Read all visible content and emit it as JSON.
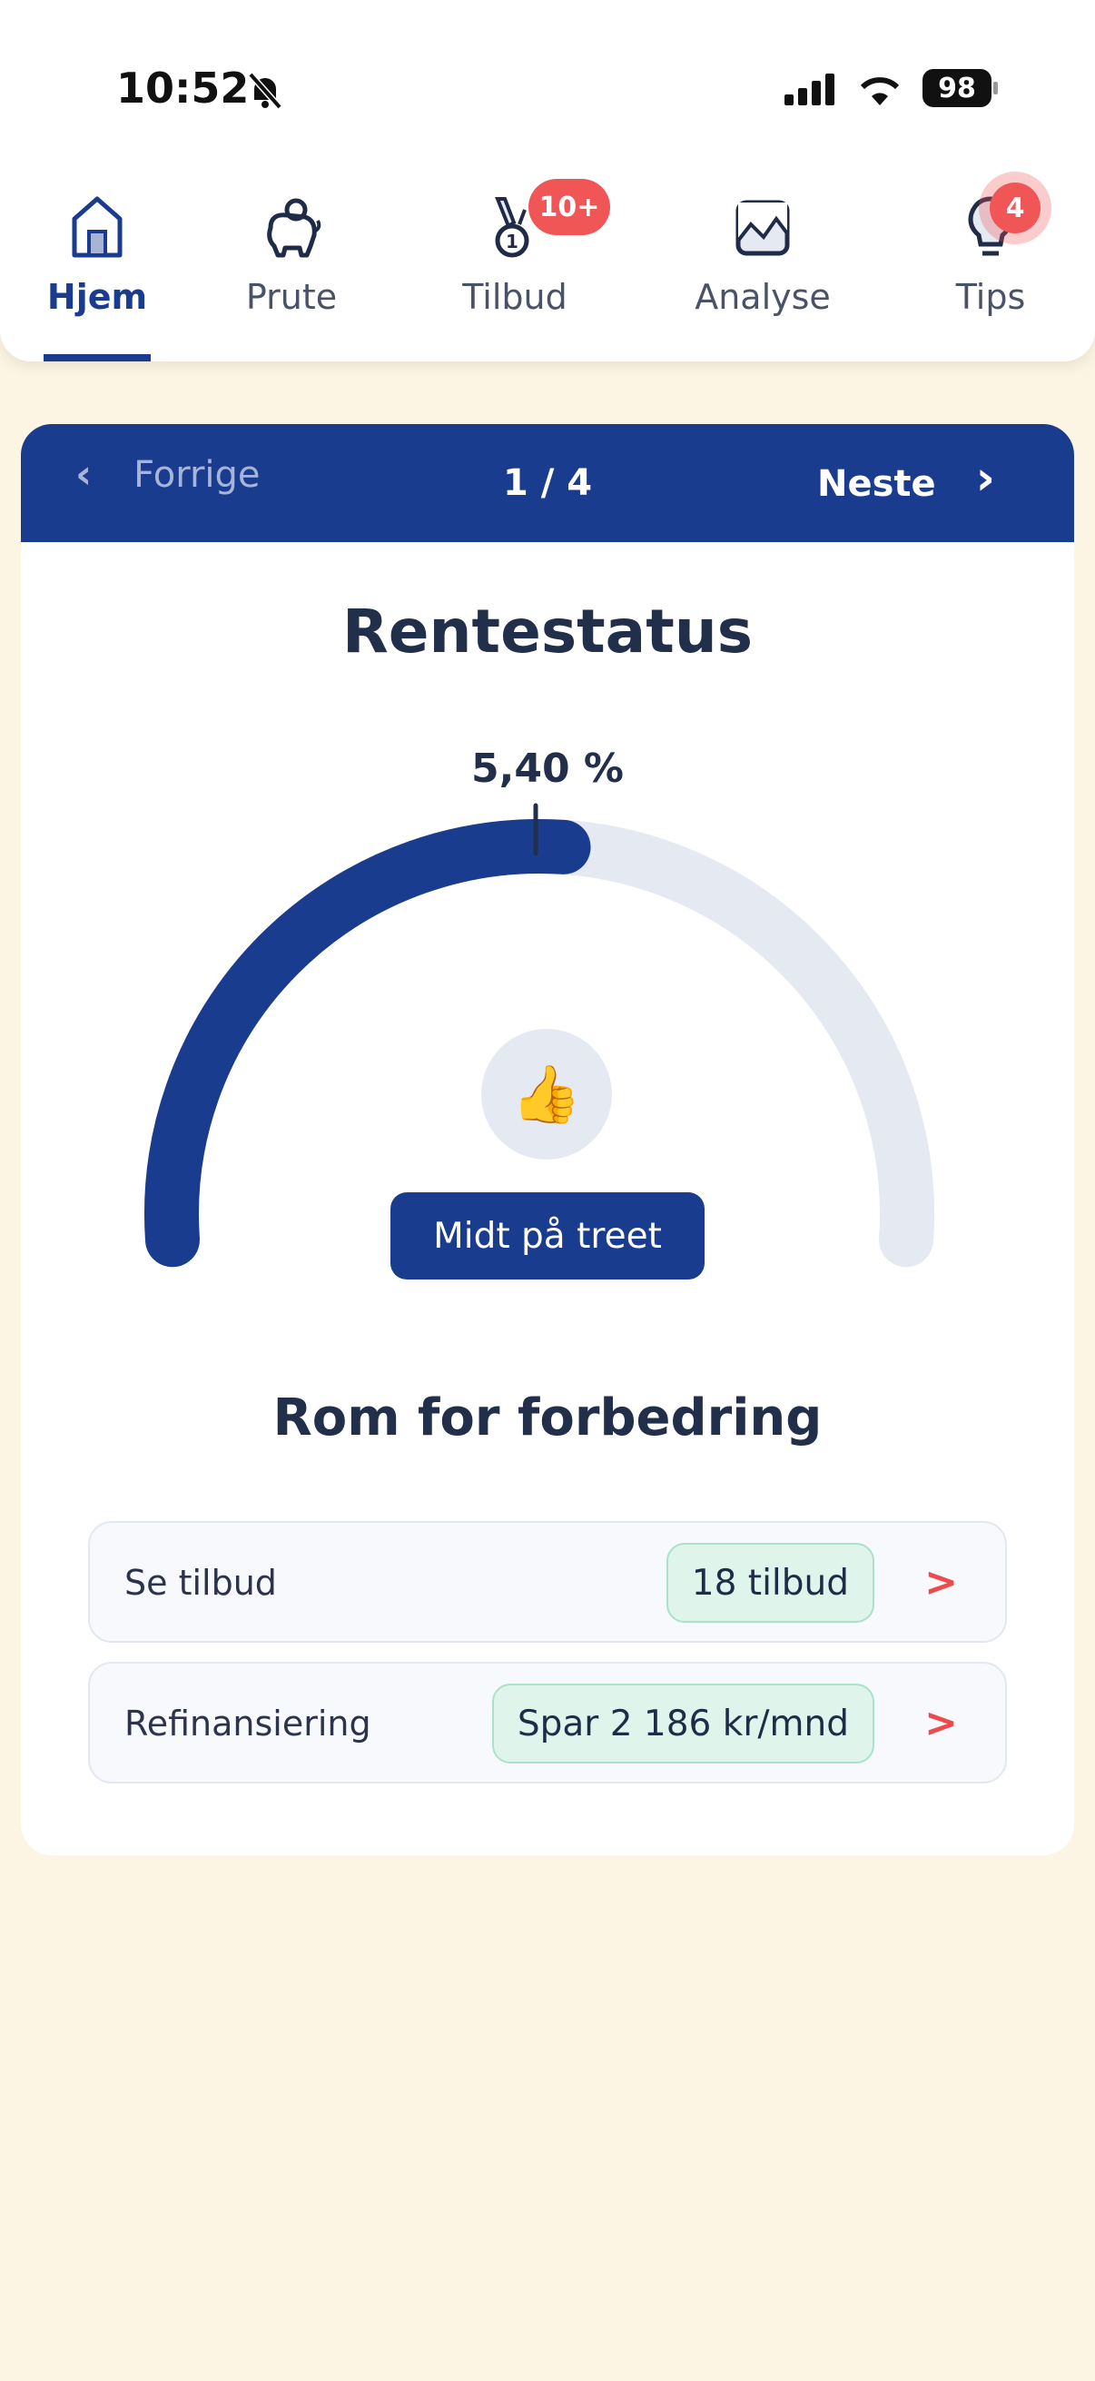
{
  "status_bar": {
    "time": "10:52",
    "battery": "98",
    "icons": [
      "bell-slash-icon",
      "signal-icon",
      "wifi-icon",
      "battery-icon"
    ]
  },
  "tabs": [
    {
      "label": "Hjem",
      "icon": "home-icon",
      "active": true
    },
    {
      "label": "Prute",
      "icon": "piggy-bank-icon"
    },
    {
      "label": "Tilbud",
      "icon": "medal-icon",
      "badge": "10+"
    },
    {
      "label": "Analyse",
      "icon": "chart-icon"
    },
    {
      "label": "Tips",
      "icon": "lightbulb-icon",
      "badge": "4"
    }
  ],
  "pager": {
    "prev": "Forrige",
    "position": "1 / 4",
    "next": "Neste"
  },
  "card": {
    "title": "Rentestatus",
    "gauge": {
      "value_label": "5,40 %",
      "fill_fraction": 0.52,
      "emoji": "👍",
      "status": "Midt på treet",
      "fill_color": "#1a3c8f",
      "track_color": "#e5e9f2"
    },
    "subtitle": "Rom for forbedring",
    "rows": [
      {
        "label": "Se tilbud",
        "pill": "18 tilbud"
      },
      {
        "label": "Refinansiering",
        "pill": "Spar 2 186 kr/mnd"
      }
    ]
  },
  "colors": {
    "brand": "#1a3c8f",
    "badge": "#f05656",
    "background": "#fdf5e3",
    "accent_red": "#ef4a4a"
  }
}
